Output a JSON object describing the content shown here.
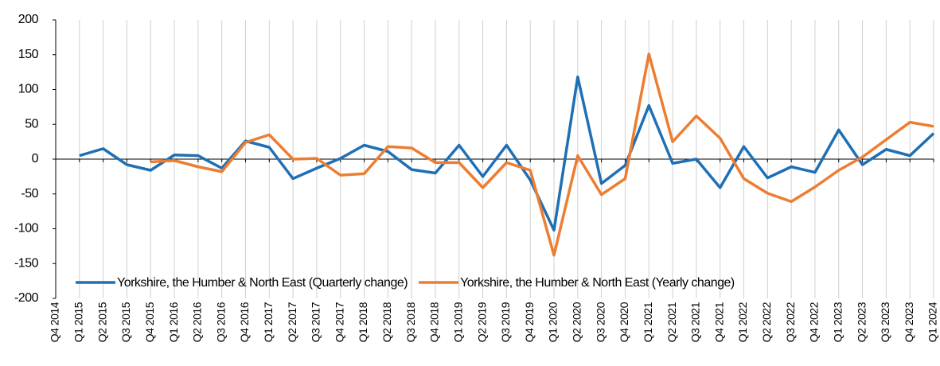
{
  "chart_data": {
    "type": "line",
    "categories": [
      "Q4 2014",
      "Q1 2015",
      "Q2 2015",
      "Q3 2015",
      "Q4 2015",
      "Q1 2016",
      "Q2 2016",
      "Q3 2016",
      "Q4 2016",
      "Q1 2017",
      "Q2 2017",
      "Q3 2017",
      "Q4 2017",
      "Q1 2018",
      "Q2 2018",
      "Q3 2018",
      "Q4 2018",
      "Q1 2019",
      "Q2 2019",
      "Q3 2019",
      "Q4 2019",
      "Q1 2020",
      "Q2 2020",
      "Q3 2020",
      "Q4 2020",
      "Q1 2021",
      "Q2 2021",
      "Q3 2021",
      "Q4 2021",
      "Q1 2022",
      "Q2 2022",
      "Q3 2022",
      "Q4 2022",
      "Q1 2023",
      "Q2 2023",
      "Q3 2023",
      "Q4 2023",
      "Q1 2024"
    ],
    "series": [
      {
        "name": "Yorkshire, the Humber & North East (Quarterly change)",
        "color": "#1f6fb5",
        "values": [
          null,
          5,
          15,
          -8,
          -16,
          6,
          5,
          -13,
          26,
          17,
          -28,
          -13,
          1,
          20,
          11,
          -15,
          -20,
          20,
          -25,
          20,
          -30,
          -102,
          118,
          -35,
          -9,
          77,
          -6,
          0,
          -41,
          18,
          -27,
          -11,
          -19,
          42,
          -8,
          14,
          5,
          37
        ]
      },
      {
        "name": "Yorkshire, the Humber & North East (Yearly change)",
        "color": "#ed7d31",
        "values": [
          null,
          null,
          null,
          null,
          -4,
          -2,
          -11,
          -18,
          24,
          35,
          0,
          1,
          -23,
          -21,
          18,
          16,
          -5,
          -5,
          -41,
          -5,
          -16,
          -138,
          5,
          -51,
          -28,
          151,
          25,
          62,
          30,
          -28,
          -49,
          -61,
          -40,
          -16,
          3,
          28,
          53,
          47
        ]
      }
    ],
    "ylim": [
      -200,
      200
    ],
    "yticks": [
      -200,
      -150,
      -100,
      -50,
      0,
      50,
      100,
      150,
      200
    ],
    "grid": true,
    "legend": "lower center"
  }
}
